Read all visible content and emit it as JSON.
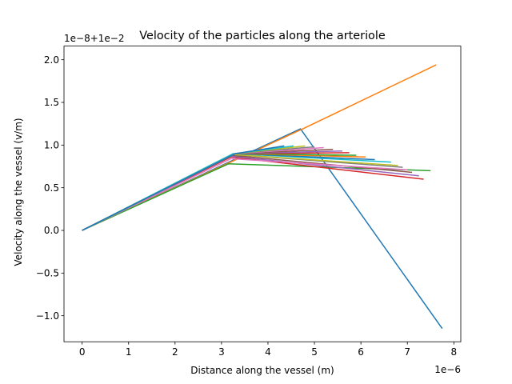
{
  "chart_data": {
    "type": "line",
    "title": "Velocity of the particles along the arteriole",
    "xlabel": "Distance along the vessel (m)",
    "ylabel": "Velocity along the vessel (v/m)",
    "x_offset_label": "1e−6",
    "y_offset_label": "1e−8+1e−2",
    "xlim": [
      -0.39,
      8.15
    ],
    "ylim": [
      -1.305,
      2.16
    ],
    "xticks": [
      0,
      1,
      2,
      3,
      4,
      5,
      6,
      7,
      8
    ],
    "xtick_labels": [
      "0",
      "1",
      "2",
      "3",
      "4",
      "5",
      "6",
      "7",
      "8"
    ],
    "yticks": [
      -1.0,
      -0.5,
      0.0,
      0.5,
      1.0,
      1.5,
      2.0
    ],
    "ytick_labels": [
      "−1.0",
      "−0.5",
      "0.0",
      "0.5",
      "1.0",
      "1.5",
      "2.0"
    ],
    "grid": false,
    "series": [
      {
        "color": "#1f77b4",
        "x": [
          0,
          4.7,
          7.75
        ],
        "y": [
          0,
          1.19,
          -1.15
        ]
      },
      {
        "color": "#ff7f0e",
        "x": [
          0,
          4.75,
          7.62
        ],
        "y": [
          0,
          1.19,
          1.94
        ]
      },
      {
        "color": "#2ca02c",
        "x": [
          0,
          3.15,
          7.5
        ],
        "y": [
          0,
          0.78,
          0.7
        ]
      },
      {
        "color": "#d62728",
        "x": [
          0,
          3.2,
          7.35
        ],
        "y": [
          0,
          0.86,
          0.6
        ]
      },
      {
        "color": "#9467bd",
        "x": [
          0,
          3.2,
          7.25
        ],
        "y": [
          0,
          0.87,
          0.64
        ]
      },
      {
        "color": "#8c564b",
        "x": [
          0,
          3.22,
          7.1
        ],
        "y": [
          0,
          0.88,
          0.68
        ]
      },
      {
        "color": "#e377c2",
        "x": [
          0,
          3.2,
          7.0
        ],
        "y": [
          0,
          0.84,
          0.71
        ]
      },
      {
        "color": "#7f7f7f",
        "x": [
          0,
          3.25,
          6.9
        ],
        "y": [
          0,
          0.89,
          0.74
        ]
      },
      {
        "color": "#bcbd22",
        "x": [
          0,
          3.25,
          6.8
        ],
        "y": [
          0,
          0.89,
          0.76
        ]
      },
      {
        "color": "#17becf",
        "x": [
          0,
          3.25,
          6.65
        ],
        "y": [
          0,
          0.9,
          0.8
        ]
      },
      {
        "color": "#1f77b4",
        "x": [
          0,
          3.3,
          6.3
        ],
        "y": [
          0,
          0.9,
          0.83
        ]
      },
      {
        "color": "#ff7f0e",
        "x": [
          0,
          3.3,
          6.1
        ],
        "y": [
          0,
          0.9,
          0.86
        ]
      },
      {
        "color": "#2ca02c",
        "x": [
          0,
          3.3,
          5.9
        ],
        "y": [
          0,
          0.9,
          0.88
        ]
      },
      {
        "color": "#d62728",
        "x": [
          0,
          3.3,
          5.75
        ],
        "y": [
          0,
          0.9,
          0.91
        ]
      },
      {
        "color": "#9467bd",
        "x": [
          0,
          3.3,
          5.6
        ],
        "y": [
          0,
          0.9,
          0.93
        ]
      },
      {
        "color": "#8c564b",
        "x": [
          0,
          3.3,
          5.4
        ],
        "y": [
          0,
          0.9,
          0.95
        ]
      },
      {
        "color": "#e377c2",
        "x": [
          0,
          3.3,
          5.2
        ],
        "y": [
          0,
          0.9,
          0.97
        ]
      },
      {
        "color": "#7f7f7f",
        "x": [
          0,
          3.3,
          5.0
        ],
        "y": [
          0,
          0.9,
          0.98
        ]
      },
      {
        "color": "#bcbd22",
        "x": [
          0,
          3.3,
          4.8
        ],
        "y": [
          0,
          0.9,
          0.99
        ]
      },
      {
        "color": "#17becf",
        "x": [
          0,
          3.3,
          4.55
        ],
        "y": [
          0,
          0.9,
          0.99
        ]
      },
      {
        "color": "#1f77b4",
        "x": [
          0,
          3.3,
          4.35
        ],
        "y": [
          0,
          0.9,
          0.99
        ]
      }
    ]
  }
}
